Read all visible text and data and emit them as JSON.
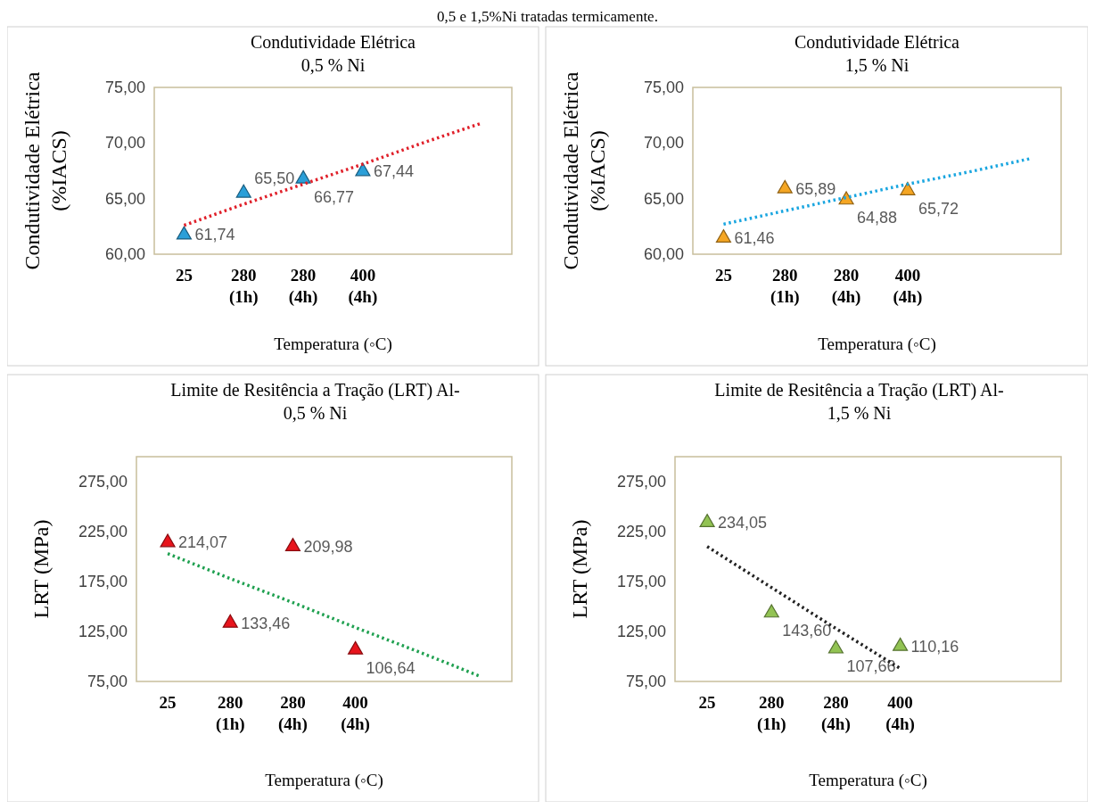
{
  "chart_data": [
    {
      "type": "scatter",
      "title": "Condutividade Elétrica",
      "subtitle": "0,5 % Ni",
      "xlabel": "Temperatura (◦C)",
      "ylabel": "Condutividade Elétrica (%IACS)",
      "annotations": [
        "0,5 e 1,5%Ni tratadas termicamente."
      ],
      "categories": [
        "25",
        "280 (1h)",
        "280 (4h)",
        "400 (4h)",
        null,
        null
      ],
      "ylim": [
        60,
        75
      ],
      "yticks": [
        {
          "value": 60,
          "label": "60,00"
        },
        {
          "value": 65,
          "label": "65,00"
        },
        {
          "value": 70,
          "label": "70,00"
        },
        {
          "value": 75,
          "label": "75,00"
        }
      ],
      "series": [
        {
          "type": "scatter",
          "marker": "triangle",
          "color": "#2a9fd8",
          "values": [
            61.74,
            65.5,
            66.77,
            67.44,
            null,
            null
          ],
          "value_labels": [
            "61,74",
            "65,50",
            "66,77",
            "67,44",
            null,
            null
          ]
        },
        {
          "type": "line",
          "color": "#e0202a",
          "line_style": "dotted",
          "values": [
            62.6,
            64.5,
            66.3,
            68.1,
            70.0,
            71.8
          ]
        }
      ]
    },
    {
      "type": "scatter",
      "title": "Condutividade Elétrica",
      "subtitle": "1,5 % Ni",
      "xlabel": "Temperatura (◦C)",
      "ylabel": "Condutividade Elétrica (%IACS)",
      "categories": [
        "25",
        "280 (1h)",
        "280 (4h)",
        "400 (4h)",
        null,
        null
      ],
      "ylim": [
        60,
        75
      ],
      "yticks": [
        {
          "value": 60,
          "label": "60,00"
        },
        {
          "value": 65,
          "label": "65,00"
        },
        {
          "value": 70,
          "label": "70,00"
        },
        {
          "value": 75,
          "label": "75,00"
        }
      ],
      "series": [
        {
          "type": "scatter",
          "marker": "triangle",
          "color": "#f5a623",
          "values": [
            61.46,
            65.89,
            64.88,
            65.72,
            null,
            null
          ],
          "value_labels": [
            "61,46",
            "65,89",
            "64,88",
            "65,72",
            null,
            null
          ]
        },
        {
          "type": "line",
          "color": "#1aa6e0",
          "line_style": "dotted",
          "values": [
            62.7,
            63.9,
            65.1,
            66.3,
            67.4,
            68.6
          ]
        }
      ]
    },
    {
      "type": "scatter",
      "title": "Limite de Resitência a Tração (LRT) Al-",
      "subtitle": "0,5 % Ni",
      "xlabel": "Temperatura (◦C)",
      "ylabel": "LRT (MPa)",
      "categories": [
        "25",
        "280 (1h)",
        "280 (4h)",
        "400 (4h)",
        null,
        null
      ],
      "ylim": [
        75,
        300
      ],
      "yticks": [
        {
          "value": 75,
          "label": "75,00"
        },
        {
          "value": 125,
          "label": "125,00"
        },
        {
          "value": 175,
          "label": "175,00"
        },
        {
          "value": 225,
          "label": "225,00"
        },
        {
          "value": 275,
          "label": "275,00"
        }
      ],
      "series": [
        {
          "type": "scatter",
          "marker": "triangle",
          "color": "#e8141c",
          "values": [
            214.07,
            133.46,
            209.98,
            106.64,
            null,
            null
          ],
          "value_labels": [
            "214,07",
            "133,46",
            "209,98",
            "106,64",
            null,
            null
          ]
        },
        {
          "type": "line",
          "color": "#1fa050",
          "line_style": "dotted",
          "values": [
            203,
            178,
            154,
            129,
            105,
            80
          ]
        }
      ]
    },
    {
      "type": "scatter",
      "title": "Limite de Resitência a Tração (LRT) Al-",
      "subtitle": "1,5 % Ni",
      "xlabel": "Temperatura (◦C)",
      "ylabel": "LRT (MPa)",
      "categories": [
        "25",
        "280 (1h)",
        "280 (4h)",
        "400 (4h)",
        null,
        null
      ],
      "ylim": [
        75,
        300
      ],
      "yticks": [
        {
          "value": 75,
          "label": "75,00"
        },
        {
          "value": 125,
          "label": "125,00"
        },
        {
          "value": 175,
          "label": "175,00"
        },
        {
          "value": 225,
          "label": "225,00"
        },
        {
          "value": 275,
          "label": "275,00"
        }
      ],
      "series": [
        {
          "type": "scatter",
          "marker": "triangle",
          "color": "#92c353",
          "values": [
            234.05,
            143.6,
            107.66,
            110.16,
            null,
            null
          ],
          "value_labels": [
            "234,05",
            "143,60",
            "107,66",
            "110,16",
            null,
            null
          ]
        },
        {
          "type": "line",
          "color": "#222222",
          "line_style": "dotted",
          "values": [
            210,
            169,
            128,
            88,
            null,
            null
          ]
        }
      ]
    }
  ]
}
